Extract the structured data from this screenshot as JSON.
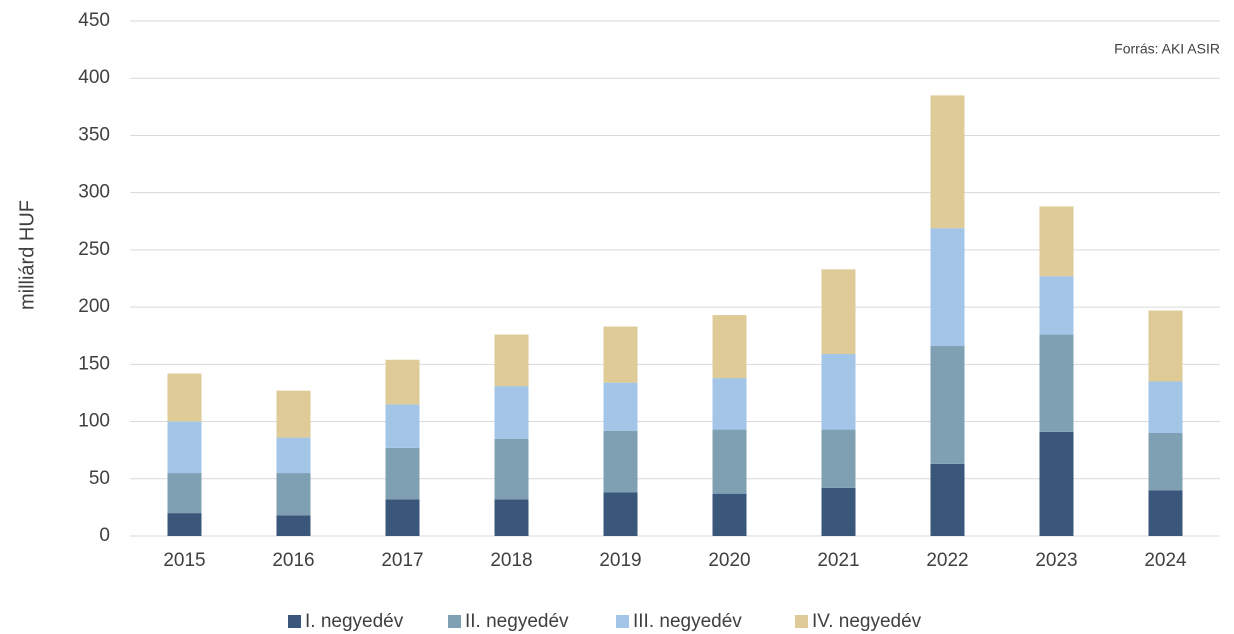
{
  "chart_data": {
    "type": "stacked_bar",
    "y_label": "milliárd HUF",
    "annotation": "Forrás: AKI ASIR",
    "categories": [
      "2015",
      "2016",
      "2017",
      "2018",
      "2019",
      "2020",
      "2021",
      "2022",
      "2023",
      "2024"
    ],
    "series": [
      {
        "name": "I. negyedév",
        "color": "#3a567a",
        "values": [
          20,
          18,
          32,
          32,
          38,
          37,
          42,
          63,
          91,
          40
        ]
      },
      {
        "name": "II. negyedév",
        "color": "#7fa0b3",
        "values": [
          35,
          37,
          45,
          53,
          54,
          56,
          51,
          103,
          85,
          50
        ]
      },
      {
        "name": "III. negyedév",
        "color": "#a3c6e8",
        "values": [
          45,
          31,
          38,
          46,
          42,
          45,
          66,
          103,
          51,
          45
        ]
      },
      {
        "name": "IV. negyedév",
        "color": "#dfcb98",
        "values": [
          42,
          41,
          39,
          45,
          49,
          55,
          74,
          116,
          61,
          62
        ]
      }
    ],
    "ylim": [
      0,
      450
    ],
    "yticks": [
      0,
      50,
      100,
      150,
      200,
      250,
      300,
      350,
      400,
      450
    ],
    "grid": true
  }
}
